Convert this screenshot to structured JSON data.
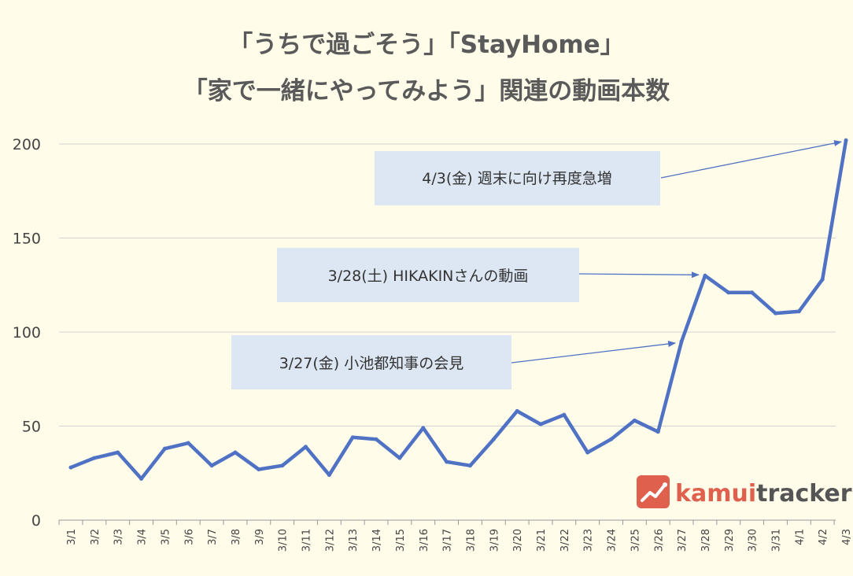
{
  "chart_title": {
    "line1": "「うちで過ごそう」「StayHome」",
    "line2": "「家で一緒にやってみよう」関連の動画本数"
  },
  "logo": {
    "brand_part1": "kamui",
    "brand_part2": "tracker",
    "icon": "chart-up-icon",
    "color": "#e0604e"
  },
  "colors": {
    "line": "#4f72c4",
    "background": "#fffce9",
    "annotation_box": "#dde7f3",
    "grid": "#d3d3d3"
  },
  "chart_data": {
    "type": "line",
    "title": "「うちで過ごそう」「StayHome」「家で一緒にやってみよう」関連の動画本数",
    "xlabel": "",
    "ylabel": "",
    "categories": [
      "3/1",
      "3/2",
      "3/3",
      "3/4",
      "3/5",
      "3/6",
      "3/7",
      "3/8",
      "3/9",
      "3/10",
      "3/11",
      "3/12",
      "3/13",
      "3/14",
      "3/15",
      "3/16",
      "3/17",
      "3/18",
      "3/19",
      "3/20",
      "3/21",
      "3/22",
      "3/23",
      "3/24",
      "3/25",
      "3/26",
      "3/27",
      "3/28",
      "3/29",
      "3/30",
      "3/31",
      "4/1",
      "4/2",
      "4/3"
    ],
    "series": [
      {
        "values": [
          28,
          33,
          36,
          22,
          38,
          41,
          29,
          36,
          27,
          29,
          39,
          24,
          44,
          43,
          33,
          49,
          31,
          29,
          43,
          58,
          51,
          56,
          36,
          43,
          53,
          47,
          95,
          130,
          121,
          121,
          110,
          111,
          128,
          202
        ]
      }
    ],
    "ylim": [
      0,
      200
    ],
    "yticks": [
      0,
      50,
      100,
      150,
      200
    ],
    "grid": true,
    "legend": "none",
    "annotations": [
      {
        "text": "4/3(金) 週末に向け再度急増",
        "target_category": "4/3"
      },
      {
        "text": "3/28(土) HIKAKINさんの動画",
        "target_category": "3/28"
      },
      {
        "text": "3/27(金) 小池都知事の会見",
        "target_category": "3/27"
      }
    ]
  }
}
